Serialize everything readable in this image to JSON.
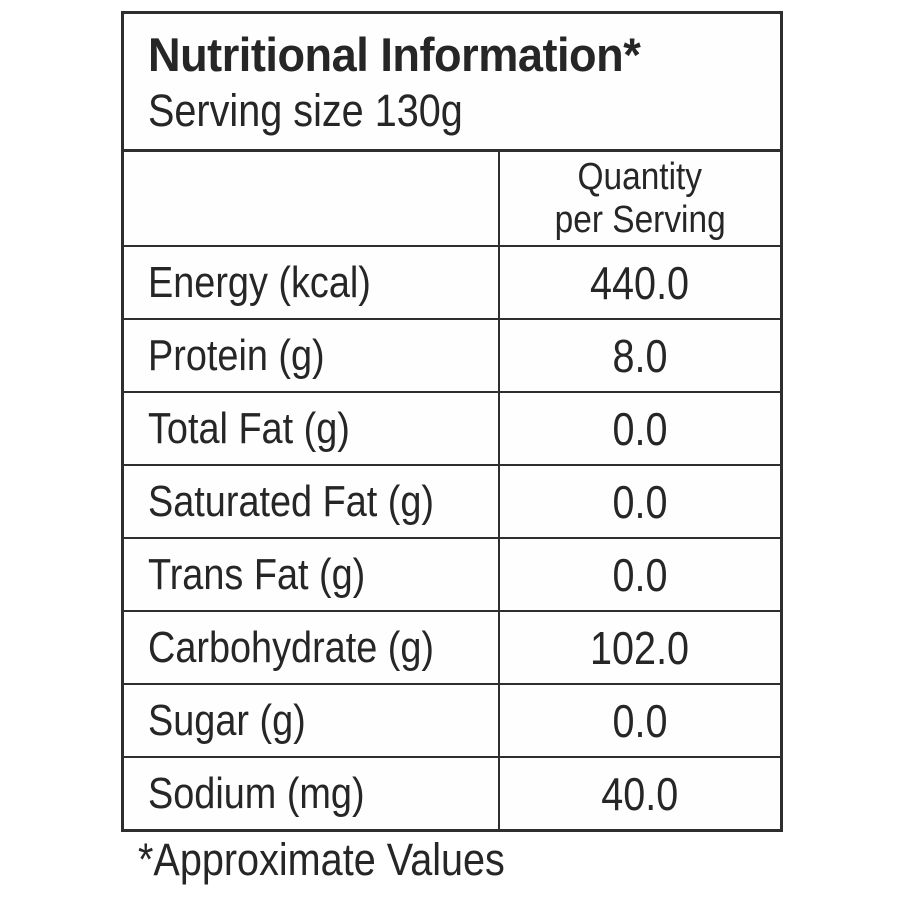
{
  "label": {
    "title": "Nutritional Information*",
    "serving_line": "Serving size 130g",
    "columns": {
      "nutrient_header": "",
      "quantity_header_line1": "Quantity",
      "quantity_header_line2": "per Serving"
    },
    "rows": [
      {
        "name": "Energy (kcal)",
        "value": "440.0"
      },
      {
        "name": "Protein (g)",
        "value": "8.0"
      },
      {
        "name": "Total Fat (g)",
        "value": "0.0"
      },
      {
        "name": "Saturated Fat (g)",
        "value": "0.0"
      },
      {
        "name": "Trans Fat (g)",
        "value": "0.0"
      },
      {
        "name": "Carbohydrate (g)",
        "value": "102.0"
      },
      {
        "name": "Sugar (g)",
        "value": "0.0"
      },
      {
        "name": "Sodium (mg)",
        "value": "40.0"
      }
    ],
    "footnote": "*Approximate Values",
    "colors": {
      "text": "#262626",
      "border": "#2e2e2e",
      "background": "#ffffff"
    }
  }
}
